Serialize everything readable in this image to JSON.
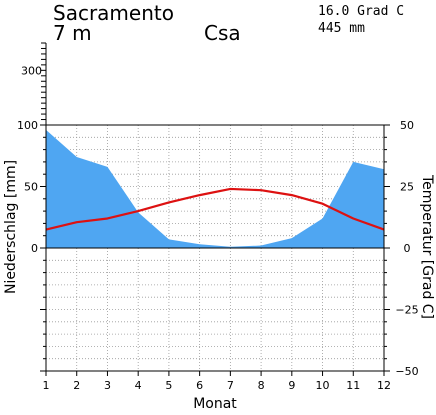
{
  "header": {
    "station": "Sacramento",
    "elevation": "7 m",
    "climate_class": "Csa",
    "mean_temperature": "16.0 Grad C",
    "annual_precipitation": "445 mm"
  },
  "chart_data": {
    "type": "area",
    "title": "Sacramento",
    "xlabel": "Monat",
    "ylabel_left": "Niederschlag [mm]",
    "ylabel_right": "Temperatur [Grad C]",
    "x": [
      1,
      2,
      3,
      4,
      5,
      6,
      7,
      8,
      9,
      10,
      11,
      12
    ],
    "x_ticks": [
      "1",
      "2",
      "3",
      "4",
      "5",
      "6",
      "7",
      "8",
      "9",
      "10",
      "11",
      "12"
    ],
    "y_left_range": [
      -100,
      100
    ],
    "y_left_ticks": [
      "100",
      "50",
      "0"
    ],
    "y_right_range": [
      -50,
      50
    ],
    "y_right_ticks": [
      "50",
      "25",
      "0",
      "−25",
      "−50"
    ],
    "y_upper_tick_label": "300",
    "y_upper_range": [
      100,
      400
    ],
    "grid": true,
    "series": [
      {
        "name": "Niederschlag",
        "axis": "left",
        "type": "area",
        "color": "#4fa6f2",
        "values": [
          96,
          74,
          66,
          29,
          7,
          3,
          1,
          2,
          8,
          24,
          70,
          64
        ]
      },
      {
        "name": "Temperatur",
        "axis": "right",
        "type": "line",
        "color": "#dd1111",
        "values": [
          7.5,
          10.5,
          12,
          15,
          18.5,
          21.5,
          24,
          23.5,
          21.5,
          18,
          12,
          7.5
        ]
      }
    ]
  }
}
